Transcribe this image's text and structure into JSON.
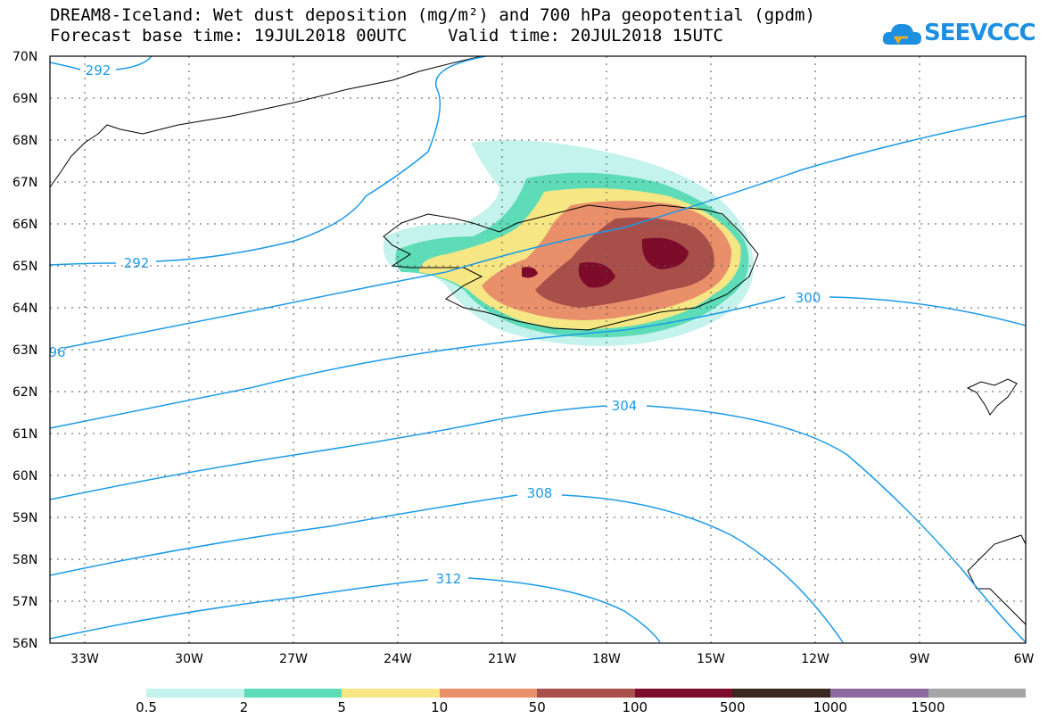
{
  "title_line1": "DREAM8-Iceland: Wet dust deposition (mg/m²) and 700 hPa geopotential (gpdm)",
  "title_line2": "Forecast base time: 19JUL2018 00UTC    Valid time: 20JUL2018 15UTC",
  "logo_text": "SEEVCCC",
  "lat_labels": [
    "70N",
    "69N",
    "68N",
    "67N",
    "66N",
    "65N",
    "64N",
    "63N",
    "62N",
    "61N",
    "60N",
    "59N",
    "58N",
    "57N",
    "56N"
  ],
  "lon_labels": [
    "33W",
    "30W",
    "27W",
    "24W",
    "21W",
    "18W",
    "15W",
    "12W",
    "9W",
    "6W"
  ],
  "contour_labels": [
    "292",
    "292",
    "96",
    "300",
    "304",
    "308",
    "312"
  ],
  "legend": {
    "colors": [
      "#c4f2ec",
      "#5edcb7",
      "#f7e784",
      "#e9906b",
      "#a94f4a",
      "#7d0b2a",
      "#3a281e",
      "#8c699f",
      "#a5a5a5"
    ],
    "labels": [
      "0.5",
      "2",
      "5",
      "10",
      "50",
      "100",
      "500",
      "1000",
      "1500"
    ]
  },
  "colors": {
    "contour": "#1c9ae8",
    "coast": "#000000"
  }
}
